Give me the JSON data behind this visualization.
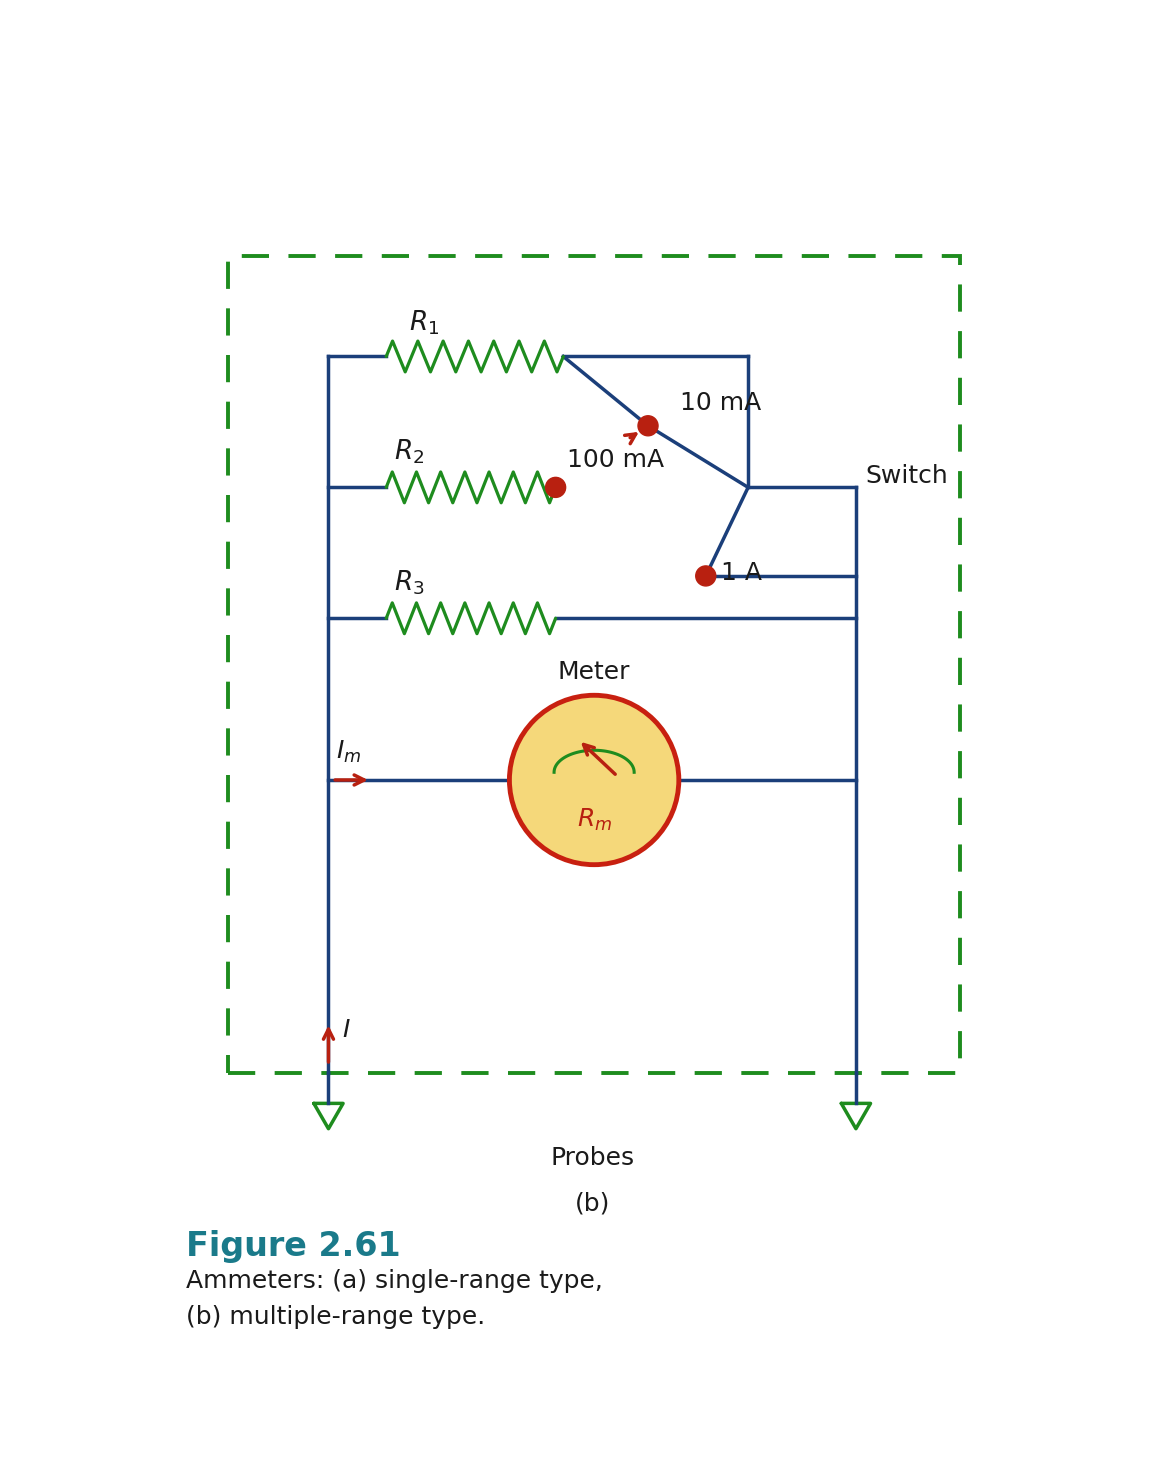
{
  "fig_width": 11.57,
  "fig_height": 14.82,
  "dpi": 100,
  "bg_color": "#ffffff",
  "circuit_color": "#1b3f7a",
  "resistor_color": "#1e8c1e",
  "dashed_box_color": "#1e8c1e",
  "red_color": "#b82010",
  "meter_fill": "#f5d87a",
  "meter_border": "#c82010",
  "probe_color": "#1e8c1e",
  "title_color": "#1a7a8a",
  "label_color": "#1a1a1a",
  "figure_label": "Figure 2.61",
  "caption_line1": "Ammeters: (a) single-range type,",
  "caption_line2": "(b) multiple-range type.",
  "subfig_label": "(b)"
}
